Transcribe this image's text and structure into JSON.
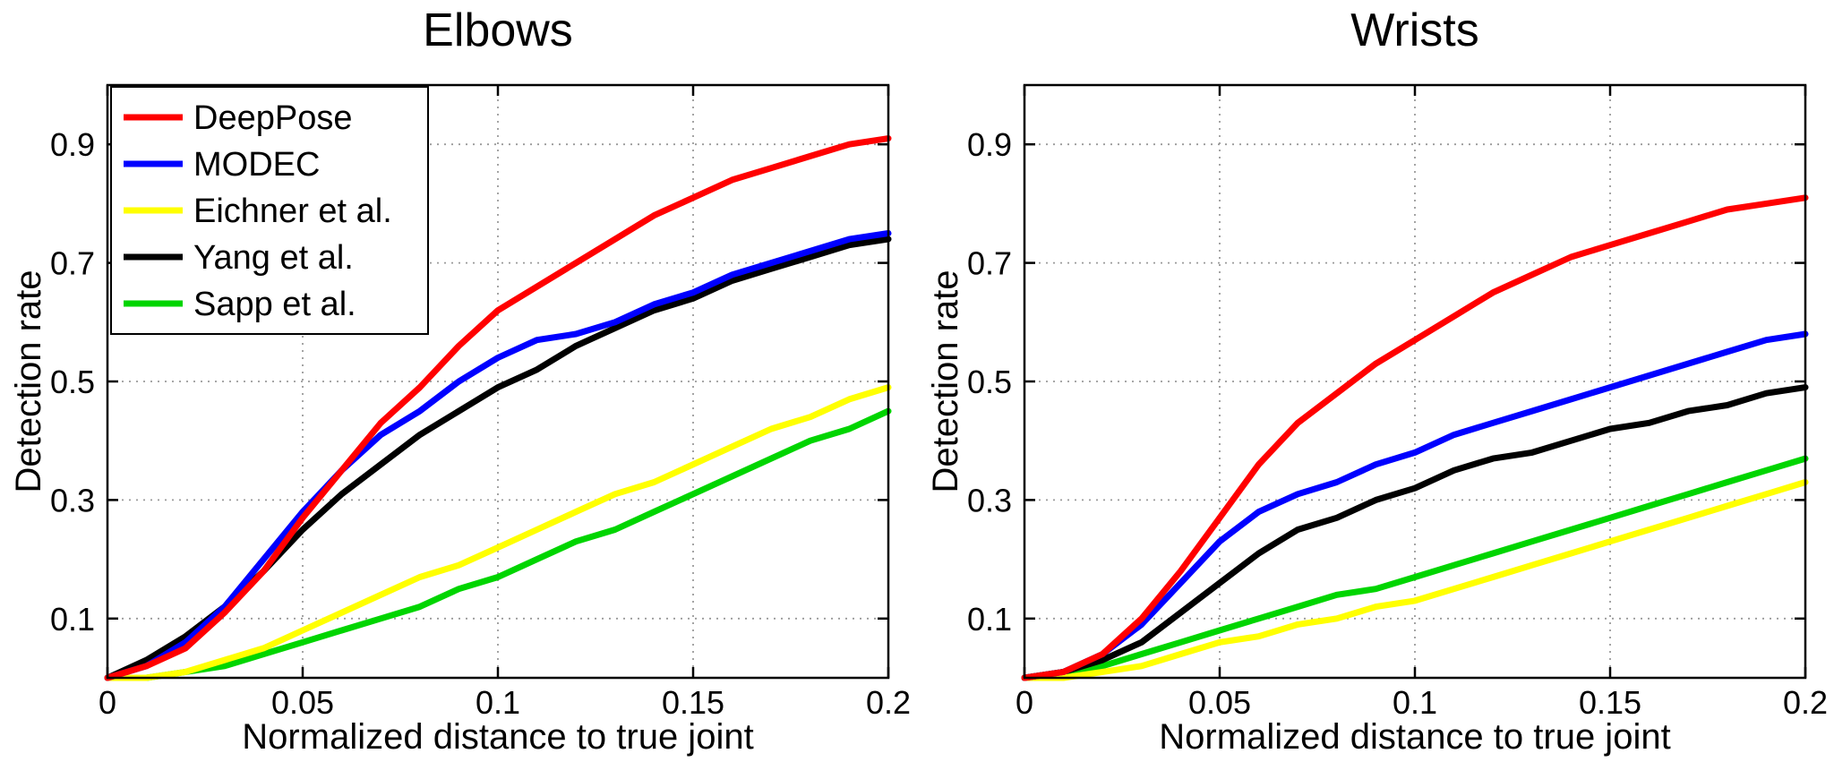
{
  "page": {
    "background": "#ffffff",
    "frame_color": "#000000",
    "grid_color": "#9a9a9a"
  },
  "chart_data": [
    {
      "type": "line",
      "title": "Elbows",
      "xlabel": "Normalized distance to true joint",
      "ylabel": "Detection rate",
      "xlim": [
        0,
        0.2
      ],
      "ylim": [
        0,
        1.0
      ],
      "xticks": [
        0,
        0.05,
        0.1,
        0.15,
        0.2
      ],
      "xtick_labels": [
        "0",
        "0.05",
        "0.1",
        "0.15",
        "0.2"
      ],
      "yticks": [
        0.1,
        0.3,
        0.5,
        0.7,
        0.9
      ],
      "ytick_labels": [
        "0.1",
        "0.3",
        "0.5",
        "0.7",
        "0.9"
      ],
      "grid": true,
      "legend": {
        "visible": true,
        "position": "top-left",
        "entries": [
          "DeepPose",
          "MODEC",
          "Eichner et al.",
          "Yang et al.",
          "Sapp et al."
        ]
      },
      "x": [
        0,
        0.01,
        0.02,
        0.03,
        0.04,
        0.05,
        0.06,
        0.07,
        0.08,
        0.09,
        0.1,
        0.11,
        0.12,
        0.13,
        0.14,
        0.15,
        0.16,
        0.17,
        0.18,
        0.19,
        0.2
      ],
      "series": [
        {
          "name": "DeepPose",
          "color": "#ff0000",
          "values": [
            0,
            0.02,
            0.05,
            0.11,
            0.18,
            0.27,
            0.35,
            0.43,
            0.49,
            0.56,
            0.62,
            0.66,
            0.7,
            0.74,
            0.78,
            0.81,
            0.84,
            0.86,
            0.88,
            0.9,
            0.91
          ]
        },
        {
          "name": "MODEC",
          "color": "#0000ff",
          "values": [
            0,
            0.02,
            0.06,
            0.12,
            0.2,
            0.28,
            0.35,
            0.41,
            0.45,
            0.5,
            0.54,
            0.57,
            0.58,
            0.6,
            0.63,
            0.65,
            0.68,
            0.7,
            0.72,
            0.74,
            0.75
          ]
        },
        {
          "name": "Eichner et al.",
          "color": "#ffff00",
          "values": [
            0,
            0.0,
            0.01,
            0.03,
            0.05,
            0.08,
            0.11,
            0.14,
            0.17,
            0.19,
            0.22,
            0.25,
            0.28,
            0.31,
            0.33,
            0.36,
            0.39,
            0.42,
            0.44,
            0.47,
            0.49
          ]
        },
        {
          "name": "Yang et al.",
          "color": "#000000",
          "values": [
            0,
            0.03,
            0.07,
            0.12,
            0.18,
            0.25,
            0.31,
            0.36,
            0.41,
            0.45,
            0.49,
            0.52,
            0.56,
            0.59,
            0.62,
            0.64,
            0.67,
            0.69,
            0.71,
            0.73,
            0.74
          ]
        },
        {
          "name": "Sapp et al.",
          "color": "#00d500",
          "values": [
            0,
            0.0,
            0.01,
            0.02,
            0.04,
            0.06,
            0.08,
            0.1,
            0.12,
            0.15,
            0.17,
            0.2,
            0.23,
            0.25,
            0.28,
            0.31,
            0.34,
            0.37,
            0.4,
            0.42,
            0.45
          ]
        }
      ]
    },
    {
      "type": "line",
      "title": "Wrists",
      "xlabel": "Normalized distance to true joint",
      "ylabel": "Detection rate",
      "xlim": [
        0,
        0.2
      ],
      "ylim": [
        0,
        1.0
      ],
      "xticks": [
        0,
        0.05,
        0.1,
        0.15,
        0.2
      ],
      "xtick_labels": [
        "0",
        "0.05",
        "0.1",
        "0.15",
        "0.2"
      ],
      "yticks": [
        0.1,
        0.3,
        0.5,
        0.7,
        0.9
      ],
      "ytick_labels": [
        "0.1",
        "0.3",
        "0.5",
        "0.7",
        "0.9"
      ],
      "grid": true,
      "legend": {
        "visible": false,
        "position": null,
        "entries": []
      },
      "x": [
        0,
        0.01,
        0.02,
        0.03,
        0.04,
        0.05,
        0.06,
        0.07,
        0.08,
        0.09,
        0.1,
        0.11,
        0.12,
        0.13,
        0.14,
        0.15,
        0.16,
        0.17,
        0.18,
        0.19,
        0.2
      ],
      "series": [
        {
          "name": "DeepPose",
          "color": "#ff0000",
          "values": [
            0,
            0.01,
            0.04,
            0.1,
            0.18,
            0.27,
            0.36,
            0.43,
            0.48,
            0.53,
            0.57,
            0.61,
            0.65,
            0.68,
            0.71,
            0.73,
            0.75,
            0.77,
            0.79,
            0.8,
            0.81
          ]
        },
        {
          "name": "MODEC",
          "color": "#0000ff",
          "values": [
            0,
            0.01,
            0.04,
            0.09,
            0.16,
            0.23,
            0.28,
            0.31,
            0.33,
            0.36,
            0.38,
            0.41,
            0.43,
            0.45,
            0.47,
            0.49,
            0.51,
            0.53,
            0.55,
            0.57,
            0.58
          ]
        },
        {
          "name": "Eichner et al.",
          "color": "#ffff00",
          "values": [
            0,
            0.0,
            0.01,
            0.02,
            0.04,
            0.06,
            0.07,
            0.09,
            0.1,
            0.12,
            0.13,
            0.15,
            0.17,
            0.19,
            0.21,
            0.23,
            0.25,
            0.27,
            0.29,
            0.31,
            0.33
          ]
        },
        {
          "name": "Yang et al.",
          "color": "#000000",
          "values": [
            0,
            0.01,
            0.03,
            0.06,
            0.11,
            0.16,
            0.21,
            0.25,
            0.27,
            0.3,
            0.32,
            0.35,
            0.37,
            0.38,
            0.4,
            0.42,
            0.43,
            0.45,
            0.46,
            0.48,
            0.49
          ]
        },
        {
          "name": "Sapp et al.",
          "color": "#00d500",
          "values": [
            0,
            0.01,
            0.02,
            0.04,
            0.06,
            0.08,
            0.1,
            0.12,
            0.14,
            0.15,
            0.17,
            0.19,
            0.21,
            0.23,
            0.25,
            0.27,
            0.29,
            0.31,
            0.33,
            0.35,
            0.37
          ]
        }
      ]
    }
  ]
}
